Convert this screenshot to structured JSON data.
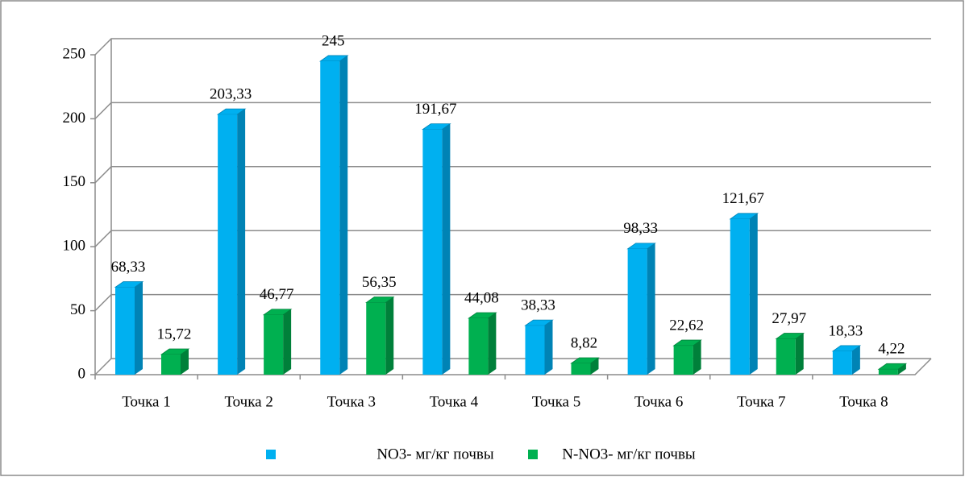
{
  "chart_data": {
    "type": "bar",
    "categories": [
      "Точка 1",
      "Точка 2",
      "Точка 3",
      "Точка 4",
      "Точка 5",
      "Точка 6",
      "Точка 7",
      "Точка 8"
    ],
    "series": [
      {
        "name": "NO3- мг/кг почвы",
        "color": "#00b0f0",
        "side_color": "#0083b5",
        "values": [
          68.33,
          203.33,
          245,
          191.67,
          38.33,
          98.33,
          121.67,
          18.33
        ],
        "value_labels": [
          "68,33",
          "203,33",
          "245",
          "191,67",
          "38,33",
          "98,33",
          "121,67",
          "18,33"
        ]
      },
      {
        "name": "N-NO3- мг/кг почвы",
        "color": "#00b050",
        "side_color": "#00803a",
        "values": [
          15.72,
          46.77,
          56.35,
          44.08,
          8.82,
          22.62,
          27.97,
          4.22
        ],
        "value_labels": [
          "15,72",
          "46,77",
          "56,35",
          "44,08",
          "8,82",
          "22,62",
          "27,97",
          "4,22"
        ]
      }
    ],
    "ylim": [
      0,
      250
    ],
    "yticks": [
      0,
      50,
      100,
      150,
      200,
      250
    ],
    "grid": true,
    "legend": "bottom"
  }
}
